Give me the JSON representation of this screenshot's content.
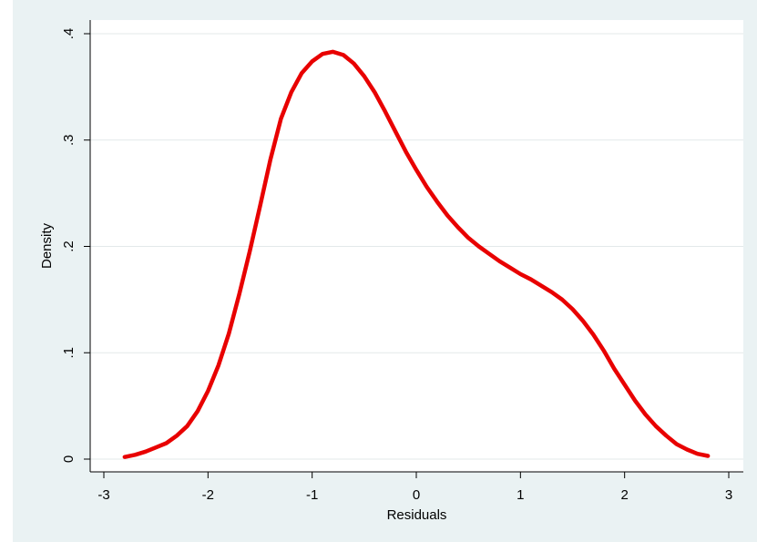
{
  "chart_data": {
    "type": "line",
    "title": "",
    "xlabel": "Residuals",
    "ylabel": "Density",
    "xlim": [
      -3,
      3
    ],
    "ylim": [
      0,
      0.4
    ],
    "x_ticks": [
      -3,
      -2,
      -1,
      0,
      1,
      2,
      3
    ],
    "x_tick_labels": [
      "-3",
      "-2",
      "-1",
      "0",
      "1",
      "2",
      "3"
    ],
    "y_ticks": [
      0,
      0.1,
      0.2,
      0.3,
      0.4
    ],
    "y_tick_labels": [
      "0",
      ".1",
      ".2",
      ".3",
      ".4"
    ],
    "grid": true,
    "legend": "none",
    "series": [
      {
        "color": "#e80000",
        "x": [
          -2.8,
          -2.7,
          -2.6,
          -2.5,
          -2.4,
          -2.3,
          -2.2,
          -2.1,
          -2.0,
          -1.9,
          -1.8,
          -1.7,
          -1.6,
          -1.5,
          -1.4,
          -1.3,
          -1.2,
          -1.1,
          -1.0,
          -0.9,
          -0.8,
          -0.7,
          -0.6,
          -0.5,
          -0.4,
          -0.3,
          -0.2,
          -0.1,
          0.0,
          0.1,
          0.2,
          0.3,
          0.4,
          0.5,
          0.6,
          0.7,
          0.8,
          0.9,
          1.0,
          1.1,
          1.2,
          1.3,
          1.4,
          1.5,
          1.6,
          1.7,
          1.8,
          1.9,
          2.0,
          2.1,
          2.2,
          2.3,
          2.4,
          2.5,
          2.6,
          2.7,
          2.8
        ],
        "y": [
          0.002,
          0.004,
          0.007,
          0.011,
          0.015,
          0.022,
          0.031,
          0.045,
          0.064,
          0.088,
          0.118,
          0.155,
          0.195,
          0.238,
          0.282,
          0.32,
          0.345,
          0.363,
          0.374,
          0.381,
          0.383,
          0.38,
          0.372,
          0.36,
          0.345,
          0.327,
          0.308,
          0.289,
          0.272,
          0.256,
          0.242,
          0.229,
          0.218,
          0.208,
          0.2,
          0.193,
          0.186,
          0.18,
          0.174,
          0.169,
          0.163,
          0.157,
          0.15,
          0.141,
          0.13,
          0.117,
          0.102,
          0.085,
          0.07,
          0.055,
          0.042,
          0.031,
          0.022,
          0.014,
          0.009,
          0.005,
          0.003
        ]
      }
    ]
  }
}
